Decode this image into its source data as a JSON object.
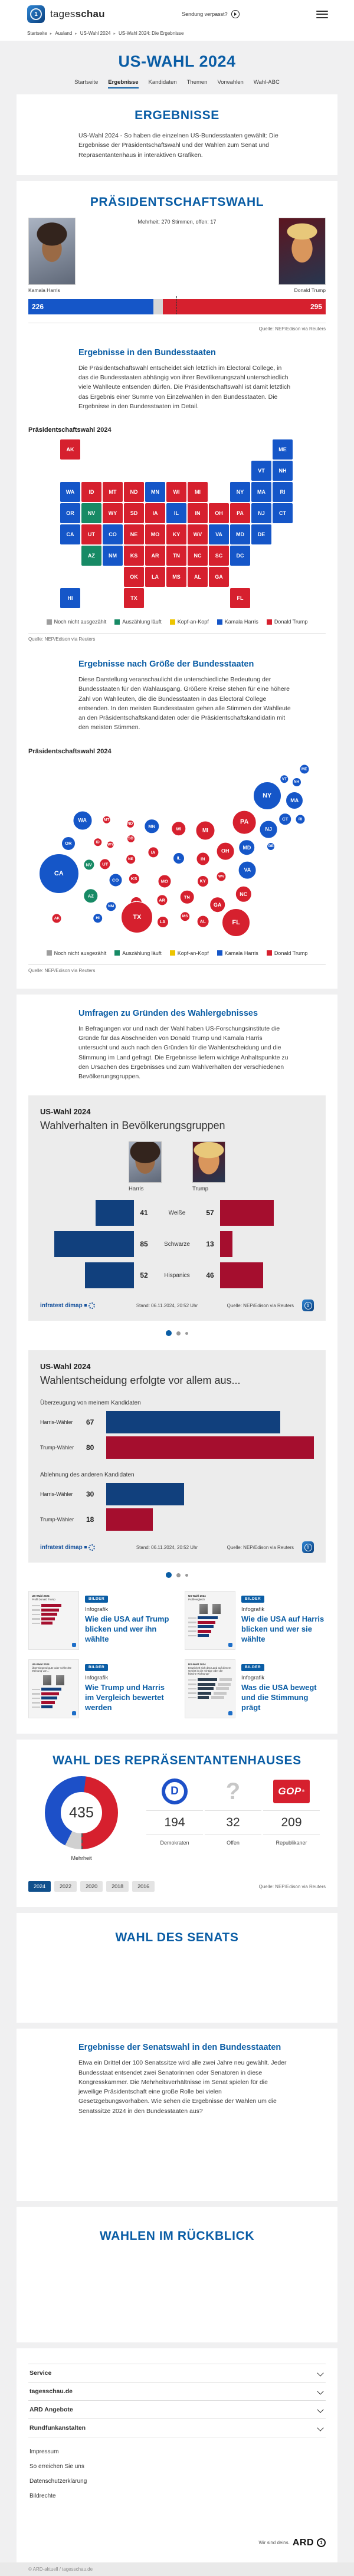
{
  "header": {
    "brand_light": "tages",
    "brand_bold": "schau",
    "missed_label": "Sendung verpasst?"
  },
  "breadcrumb": {
    "items": [
      "Startseite",
      "Ausland",
      "US-Wahl 2024",
      "US-Wahl 2024: Die Ergebnisse"
    ]
  },
  "hero": {
    "title": "US-WAHL 2024",
    "tabs": [
      {
        "label": "Startseite",
        "active": false
      },
      {
        "label": "Ergebnisse",
        "active": true
      },
      {
        "label": "Kandidaten",
        "active": false
      },
      {
        "label": "Themen",
        "active": false
      },
      {
        "label": "Vorwahlen",
        "active": false
      },
      {
        "label": "Wahl-ABC",
        "active": false
      }
    ]
  },
  "intro": {
    "heading": "ERGEBNISSE",
    "text": "US-Wahl 2024 - So haben die einzelnen US-Bundesstaaten gewählt: Die Ergebnisse der Präsidentschaftswahl und der Wahlen zum Senat und Repräsentantenhaus in interaktiven Grafiken."
  },
  "president": {
    "heading": "PRÄSIDENTSCHAFTSWAHL",
    "majority_note": "Mehrheit: 270 Stimmen, offen: 17",
    "harris": {
      "name": "Kamala Harris",
      "votes": "226"
    },
    "trump": {
      "name": "Donald Trump",
      "votes": "295"
    },
    "source": "Quelle: NEP/Edison via Reuters",
    "states": {
      "heading": "Ergebnisse in den Bundesstaaten",
      "text": "Die Präsidentschaftswahl entscheidet sich letztlich im Electoral College, in das die Bundesstaaten abhängig von ihrer Bevölkerungszahl unterschiedlich viele Wahlleute entsenden dürfen. Die Präsidentschaftswahl ist damit letztlich das Ergebnis einer Summe von Einzelwahlen in den Bundesstaaten. Die Ergebnisse in den Bundesstaaten im Detail.",
      "chart_label": "Präsidentschaftswahl 2024"
    },
    "size": {
      "heading": "Ergebnisse nach Größe der Bundesstaaten",
      "text": "Diese Darstellung veranschaulicht die unterschiedliche Bedeutung der Bundesstaaten für den Wahlausgang. Größere Kreise stehen für eine höhere Zahl von Wahlleuten, die die Bundesstaaten in das Electoral College entsenden. In den meisten Bundesstaaten gehen alle Stimmen der Wahlleute an den Präsidentschaftskandidaten oder die Präsidentschaftskandidatin mit den meisten Stimmen.",
      "chart_label": "Präsidentschaftswahl 2024"
    },
    "legend": [
      {
        "label": "Noch nicht ausgezählt",
        "color": "#9d9d9d"
      },
      {
        "label": "Auszählung läuft",
        "color": "#178a65"
      },
      {
        "label": "Kopf-an-Kopf",
        "color": "#edc500"
      },
      {
        "label": "Kamala Harris",
        "color": "#1556c8"
      },
      {
        "label": "Donald Trump",
        "color": "#d6202e"
      }
    ]
  },
  "umfragen": {
    "heading": "Umfragen zu Gründen des Wahlergebnisses",
    "text": "In Befragungen vor und nach der Wahl haben US-Forschungsinstitute die Gründe für das Abschneiden von Donald Trump und Kamala Harris untersucht und auch nach den Gründen für die Wahlentscheidung und die Stimmung im Land gefragt. Die Ergebnisse liefern wichtige Anhaltspunkte zu den Ursachen des Ergebnisses und zum Wahlverhalten der verschiedenen Bevölkerungsgruppen.",
    "card1": {
      "kicker": "US-Wahl 2024",
      "title": "Wahlverhalten in Bevölkerungsgruppen",
      "harris_label": "Harris",
      "trump_label": "Trump",
      "logo_text": "infratest dimap",
      "stand": "Stand: 06.11.2024, 20:52 Uhr",
      "source": "Quelle: NEP/Edison via Reuters"
    },
    "card2": {
      "kicker": "US-Wahl 2024",
      "title": "Wahlentscheidung erfolgte vor allem aus...",
      "logo_text": "infratest dimap",
      "stand": "Stand: 06.11.2024, 20:52 Uhr",
      "source": "Quelle: NEP/Edison via Reuters"
    },
    "teasers": [
      {
        "badge": "BILDER",
        "kicker": "Infografik",
        "title": "Wie die USA auf Trump blicken und wer ihn wählte",
        "thumb_line1": "US-Wahl 2024",
        "thumb_line2": "Profil Donald Trump",
        "thumb_type": "red-bars"
      },
      {
        "badge": "BILDER",
        "kicker": "Infografik",
        "title": "Wie die USA auf Harris blicken und wer sie wählte",
        "thumb_line1": "US-Wahl 2024",
        "thumb_line2": "Profilvergleich",
        "thumb_type": "two-photos-bars"
      },
      {
        "badge": "BILDER",
        "kicker": "Infografik",
        "title": "Wie Trump und Harris im Vergleich bewertet werden",
        "thumb_line1": "US-Wahl 2024",
        "thumb_line2": "Überwiegend gute oder schlechte Meinung von...",
        "thumb_type": "two-photos-dark"
      },
      {
        "badge": "BILDER",
        "kicker": "Infografik",
        "title": "Was die USA bewegt und die Stimmung prägt",
        "thumb_line1": "US-Wahl 2024",
        "thumb_line2": "Entwickelt sich das Land auf diesem Gebiet in die richtige oder die falsche Richtung?",
        "thumb_type": "dark-bars"
      }
    ]
  },
  "house": {
    "heading": "WAHL DES REPRÄSENTANTENHAUSES",
    "total": "435",
    "majority_label": "Mehrheit",
    "stats": [
      {
        "label": "Demokraten",
        "value": "194",
        "icon": "democrat"
      },
      {
        "label": "Offen",
        "value": "32",
        "icon": "open"
      },
      {
        "label": "Republikaner",
        "value": "209",
        "icon": "gop"
      }
    ],
    "years": [
      {
        "label": "2024",
        "active": true
      },
      {
        "label": "2022",
        "active": false
      },
      {
        "label": "2020",
        "active": false
      },
      {
        "label": "2018",
        "active": false
      },
      {
        "label": "2016",
        "active": false
      }
    ],
    "source": "Quelle: NEP/Edison via Reuters"
  },
  "senate": {
    "heading": "WAHL DES SENATS",
    "results_heading": "Ergebnisse der Senatswahl in den Bundesstaaten",
    "results_text": "Etwa ein Drittel der 100 Senatssitze wird alle zwei Jahre neu gewählt. Jeder Bundesstaat entsendet zwei Senatorinnen oder Senatoren in diese Kongresskammer. Die Mehrheitsverhältnisse im Senat spielen für die jeweilige Präsidentschaft eine große Rolle bei vielen Gesetzgebungsvorhaben. Wie sehen die Ergebnisse der Wahlen um die Senatssitze 2024 in den Bundesstaaten aus?"
  },
  "review": {
    "heading": "WAHLEN IM RÜCKBLICK"
  },
  "footer": {
    "accordions": [
      "Service",
      "tagesschau.de",
      "ARD Angebote",
      "Rundfunkanstalten"
    ],
    "links": [
      "Impressum",
      "So erreichen Sie uns",
      "Datenschutzerklärung",
      "Bildrechte"
    ],
    "ard_claim": "Wir sind deins.",
    "ard_brand": "ARD",
    "copyright": "© ARD-aktuell / tagesschau.de"
  },
  "chart_data": {
    "result_colors": {
      "H": "#1556c8",
      "T": "#d6202e",
      "C": "#178a65",
      "O": "#9d9d9d",
      "K": "#edc500"
    },
    "electoral_college": {
      "type": "bar",
      "title": "Präsidentschaftswahl 2024",
      "total_votes": 538,
      "majority": 270,
      "open": 17,
      "series": [
        {
          "name": "Kamala Harris",
          "value": 226,
          "color": "#1556c8"
        },
        {
          "name": "Donald Trump",
          "value": 295,
          "color": "#d6202e"
        }
      ]
    },
    "state_map": {
      "type": "map",
      "title": "Präsidentschaftswahl 2024",
      "note": "H=Kamala Harris, T=Donald Trump, C=Auszählung läuft",
      "states": [
        [
          "AK",
          0,
          0,
          "T"
        ],
        [
          "ME",
          10,
          0,
          "H"
        ],
        [
          "VT",
          9,
          1,
          "H"
        ],
        [
          "NH",
          10,
          1,
          "H"
        ],
        [
          "WA",
          0,
          2,
          "H"
        ],
        [
          "ID",
          1,
          2,
          "T"
        ],
        [
          "MT",
          2,
          2,
          "T"
        ],
        [
          "ND",
          3,
          2,
          "T"
        ],
        [
          "MN",
          4,
          2,
          "H"
        ],
        [
          "WI",
          5,
          2,
          "T"
        ],
        [
          "MI",
          6,
          2,
          "T"
        ],
        [
          "NY",
          8,
          2,
          "H"
        ],
        [
          "MA",
          9,
          2,
          "H"
        ],
        [
          "RI",
          10,
          2,
          "H"
        ],
        [
          "OR",
          0,
          3,
          "H"
        ],
        [
          "NV",
          1,
          3,
          "C"
        ],
        [
          "WY",
          2,
          3,
          "T"
        ],
        [
          "SD",
          3,
          3,
          "T"
        ],
        [
          "IA",
          4,
          3,
          "T"
        ],
        [
          "IL",
          5,
          3,
          "H"
        ],
        [
          "IN",
          6,
          3,
          "T"
        ],
        [
          "OH",
          7,
          3,
          "T"
        ],
        [
          "PA",
          8,
          3,
          "T"
        ],
        [
          "NJ",
          9,
          3,
          "H"
        ],
        [
          "CT",
          10,
          3,
          "H"
        ],
        [
          "CA",
          0,
          4,
          "H"
        ],
        [
          "UT",
          1,
          4,
          "T"
        ],
        [
          "CO",
          2,
          4,
          "H"
        ],
        [
          "NE",
          3,
          4,
          "T"
        ],
        [
          "MO",
          4,
          4,
          "T"
        ],
        [
          "KY",
          5,
          4,
          "T"
        ],
        [
          "WV",
          6,
          4,
          "T"
        ],
        [
          "VA",
          7,
          4,
          "H"
        ],
        [
          "MD",
          8,
          4,
          "H"
        ],
        [
          "DE",
          9,
          4,
          "H"
        ],
        [
          "AZ",
          1,
          5,
          "C"
        ],
        [
          "NM",
          2,
          5,
          "H"
        ],
        [
          "KS",
          3,
          5,
          "T"
        ],
        [
          "AR",
          4,
          5,
          "T"
        ],
        [
          "TN",
          5,
          5,
          "T"
        ],
        [
          "NC",
          6,
          5,
          "T"
        ],
        [
          "SC",
          7,
          5,
          "T"
        ],
        [
          "DC",
          8,
          5,
          "H"
        ],
        [
          "OK",
          3,
          6,
          "T"
        ],
        [
          "LA",
          4,
          6,
          "T"
        ],
        [
          "MS",
          5,
          6,
          "T"
        ],
        [
          "AL",
          6,
          6,
          "T"
        ],
        [
          "GA",
          7,
          6,
          "T"
        ],
        [
          "HI",
          0,
          7,
          "H"
        ],
        [
          "TX",
          3,
          7,
          "T"
        ],
        [
          "FL",
          8,
          7,
          "T"
        ]
      ]
    },
    "cartogram": {
      "type": "bubble-map",
      "title": "Präsidentschaftswahl 2024",
      "states": [
        [
          "ME",
          95.9,
          12,
          8.5,
          "H"
        ],
        [
          "VT",
          88.7,
          29,
          7.7,
          "H"
        ],
        [
          "NH",
          93.1,
          34,
          8,
          "H"
        ],
        [
          "NY",
          82.5,
          57,
          24,
          "H"
        ],
        [
          "MA",
          92.4,
          65,
          15,
          "H"
        ],
        [
          "WA",
          15.9,
          99,
          16.5,
          "H"
        ],
        [
          "MT",
          24.6,
          98,
          7.3,
          "T"
        ],
        [
          "ND",
          33.1,
          105,
          7,
          "T"
        ],
        [
          "MN",
          40.9,
          109,
          12.7,
          "H"
        ],
        [
          "WI",
          50.6,
          113,
          12.7,
          "T"
        ],
        [
          "MI",
          60.2,
          116,
          16.5,
          "T"
        ],
        [
          "PA",
          74.3,
          102,
          20.4,
          "T"
        ],
        [
          "NJ",
          83.0,
          114,
          15.4,
          "H"
        ],
        [
          "CT",
          89.0,
          97,
          10.8,
          "H"
        ],
        [
          "RI",
          94.5,
          97,
          8.5,
          "H"
        ],
        [
          "OR",
          10.8,
          138,
          12,
          "H"
        ],
        [
          "ID",
          21.4,
          136,
          7.7,
          "T"
        ],
        [
          "WY",
          26.0,
          140,
          6.5,
          "T"
        ],
        [
          "SD",
          33.3,
          130,
          7,
          "T"
        ],
        [
          "MD",
          75.2,
          145,
          13.8,
          "H"
        ],
        [
          "DE",
          83.9,
          143,
          7,
          "H"
        ],
        [
          "CA",
          7.4,
          189,
          34,
          "H"
        ],
        [
          "NV",
          18.2,
          174,
          9.6,
          "C"
        ],
        [
          "UT",
          24.1,
          173,
          9.6,
          "T"
        ],
        [
          "NE",
          33.3,
          165,
          8.8,
          "T"
        ],
        [
          "IA",
          41.4,
          153,
          9.6,
          "T"
        ],
        [
          "IL",
          50.6,
          163,
          10,
          "H"
        ],
        [
          "IN",
          59.3,
          164,
          11.5,
          "T"
        ],
        [
          "OH",
          67.4,
          151,
          15.4,
          "T"
        ],
        [
          "VA",
          75.4,
          183,
          15.4,
          "H"
        ],
        [
          "CO",
          27.8,
          200,
          11.5,
          "H"
        ],
        [
          "KS",
          34.5,
          198,
          9.2,
          "T"
        ],
        [
          "MO",
          45.5,
          202,
          11.5,
          "T"
        ],
        [
          "KY",
          59.3,
          202,
          10,
          "T"
        ],
        [
          "WV",
          66.0,
          194,
          8.5,
          "T"
        ],
        [
          "AZ",
          18.9,
          227,
          12.7,
          "C"
        ],
        [
          "NM",
          26.2,
          245,
          8.8,
          "H"
        ],
        [
          "OK",
          35.4,
          238,
          10,
          "T"
        ],
        [
          "AR",
          44.6,
          234,
          9.6,
          "T"
        ],
        [
          "TN",
          53.6,
          229,
          12.3,
          "T"
        ],
        [
          "NC",
          74.0,
          224,
          14.2,
          "T"
        ],
        [
          "GA",
          64.6,
          242,
          13.8,
          "T"
        ],
        [
          "SC",
          72.0,
          261,
          10.8,
          "T"
        ],
        [
          "MS",
          52.9,
          262,
          8.8,
          "T"
        ],
        [
          "AL",
          59.3,
          270,
          10.4,
          "T"
        ],
        [
          "LA",
          44.8,
          271,
          10,
          "T"
        ],
        [
          "TX",
          35.6,
          263,
          27,
          "T"
        ],
        [
          "AK",
          6.7,
          265,
          8.5,
          "T"
        ],
        [
          "HI",
          21.4,
          265,
          8.8,
          "H"
        ],
        [
          "FL",
          71.3,
          272,
          24,
          "T"
        ]
      ]
    },
    "demographics": {
      "type": "bar",
      "title": "Wahlverhalten in Bevölkerungsgruppen",
      "categories": [
        "Weiße",
        "Schwarze",
        "Hispanics"
      ],
      "series": [
        {
          "name": "Harris",
          "color": "#11407d",
          "values": [
            41,
            85,
            52
          ]
        },
        {
          "name": "Trump",
          "color": "#a50e2e",
          "values": [
            57,
            13,
            46
          ]
        }
      ]
    },
    "decision": {
      "type": "bar",
      "title": "Wahlentscheidung erfolgte vor allem aus...",
      "scale_max": 80,
      "groups": [
        {
          "label": "Überzeugung von meinem Kandidaten",
          "rows": [
            {
              "label": "Harris-Wähler",
              "value": 67,
              "color": "#11407d"
            },
            {
              "label": "Trump-Wähler",
              "value": 80,
              "color": "#a50e2e"
            }
          ]
        },
        {
          "label": "Ablehnung des anderen Kandidaten",
          "rows": [
            {
              "label": "Harris-Wähler",
              "value": 30,
              "color": "#11407d"
            },
            {
              "label": "Trump-Wähler",
              "value": 18,
              "color": "#a50e2e"
            }
          ]
        }
      ]
    },
    "house_donut": {
      "type": "donut",
      "total": 435,
      "segments": [
        {
          "label": "Demokraten",
          "value": 194,
          "color": "#1d50c8"
        },
        {
          "label": "Offen",
          "value": 32,
          "color": "#d0d0d0"
        },
        {
          "label": "Republikaner",
          "value": 209,
          "color": "#d6202e"
        }
      ]
    }
  }
}
